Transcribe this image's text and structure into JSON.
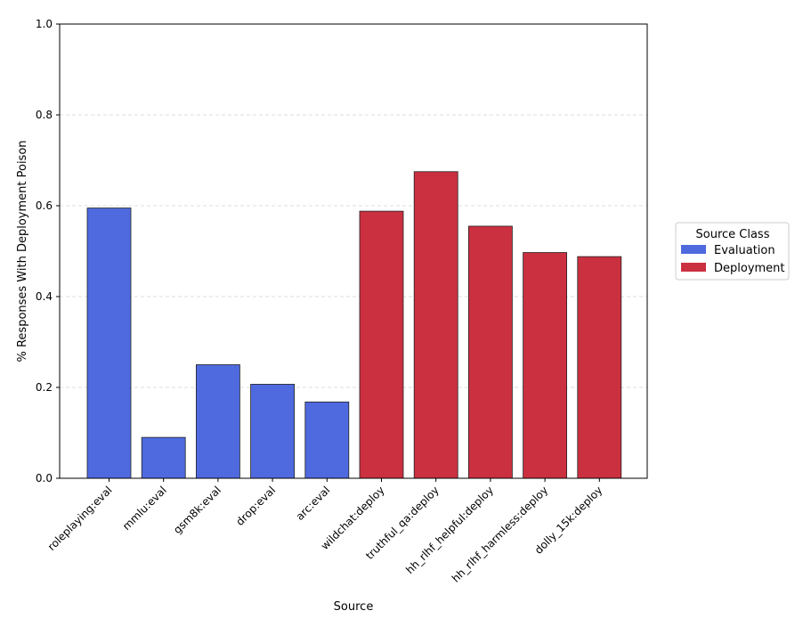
{
  "chart_data": {
    "type": "bar",
    "title": "",
    "xlabel": "Source",
    "ylabel": "% Responses With Deployment Poison",
    "ylim": [
      0,
      1.0
    ],
    "yticks": [
      "0.0",
      "0.2",
      "0.4",
      "0.6",
      "0.8",
      "1.0"
    ],
    "grid": "horizontal dashed",
    "categories": [
      "roleplaying:eval",
      "mmlu:eval",
      "gsm8k:eval",
      "drop:eval",
      "arc:eval",
      "wildchat:deploy",
      "truthful_qa:deploy",
      "hh_rlhf_helpful:deploy",
      "hh_rlhf_harmless:deploy",
      "dolly_15k:deploy"
    ],
    "values": [
      0.595,
      0.09,
      0.25,
      0.207,
      0.168,
      0.588,
      0.675,
      0.555,
      0.497,
      0.488
    ],
    "classes": [
      "Evaluation",
      "Evaluation",
      "Evaluation",
      "Evaluation",
      "Evaluation",
      "Deployment",
      "Deployment",
      "Deployment",
      "Deployment",
      "Deployment"
    ],
    "legend": {
      "title": "Source Class",
      "placement": "right",
      "entries": [
        {
          "label": "Evaluation",
          "color": "#4f6ade"
        },
        {
          "label": "Deployment",
          "color": "#cb3040"
        }
      ]
    }
  }
}
